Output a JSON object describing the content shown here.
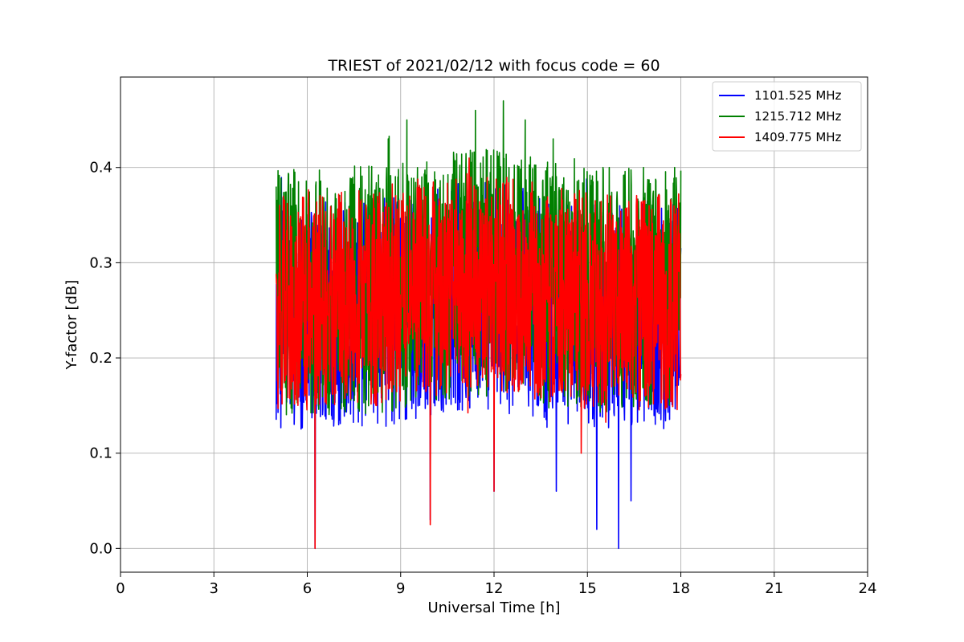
{
  "chart_data": {
    "type": "line",
    "title": "TRIEST of 2021/02/12 with focus code = 60",
    "xlabel": "Universal Time [h]",
    "ylabel": "Y-factor [dB]",
    "xlim": [
      0,
      24
    ],
    "ylim": [
      -0.025,
      0.495
    ],
    "xticks": [
      0,
      3,
      6,
      9,
      12,
      15,
      18,
      21,
      24
    ],
    "yticks": [
      0.0,
      0.1,
      0.2,
      0.3,
      0.4
    ],
    "ytick_labels": [
      "0.0",
      "0.1",
      "0.2",
      "0.3",
      "0.4"
    ],
    "grid": true,
    "legend_position": "top-right",
    "x_range_data": [
      5.0,
      18.0
    ],
    "series": [
      {
        "name": "1101.525 MHz",
        "color": "#0000ff",
        "baseline": 0.245,
        "typical_min": 0.12,
        "typical_max": 0.36,
        "notable_points": [
          [
            6.25,
            0.0
          ],
          [
            9.95,
            0.03
          ],
          [
            12.0,
            0.06
          ],
          [
            14.0,
            0.06
          ],
          [
            15.3,
            0.02
          ],
          [
            16.0,
            0.0
          ],
          [
            16.4,
            0.05
          ]
        ]
      },
      {
        "name": "1215.712 MHz",
        "color": "#008000",
        "baseline": 0.27,
        "typical_min": 0.14,
        "typical_max": 0.4,
        "notable_points": [
          [
            5.0,
            0.38
          ],
          [
            8.6,
            0.43
          ],
          [
            9.2,
            0.45
          ],
          [
            11.4,
            0.46
          ],
          [
            12.3,
            0.47
          ],
          [
            13.0,
            0.45
          ],
          [
            13.9,
            0.43
          ],
          [
            16.8,
            0.4
          ],
          [
            17.8,
            0.4
          ]
        ]
      },
      {
        "name": "1409.775 MHz",
        "color": "#ff0000",
        "baseline": 0.26,
        "typical_min": 0.14,
        "typical_max": 0.37,
        "notable_points": [
          [
            6.25,
            0.0
          ],
          [
            9.95,
            0.025
          ],
          [
            12.0,
            0.06
          ],
          [
            11.2,
            0.41
          ],
          [
            14.8,
            0.1
          ]
        ]
      }
    ]
  }
}
